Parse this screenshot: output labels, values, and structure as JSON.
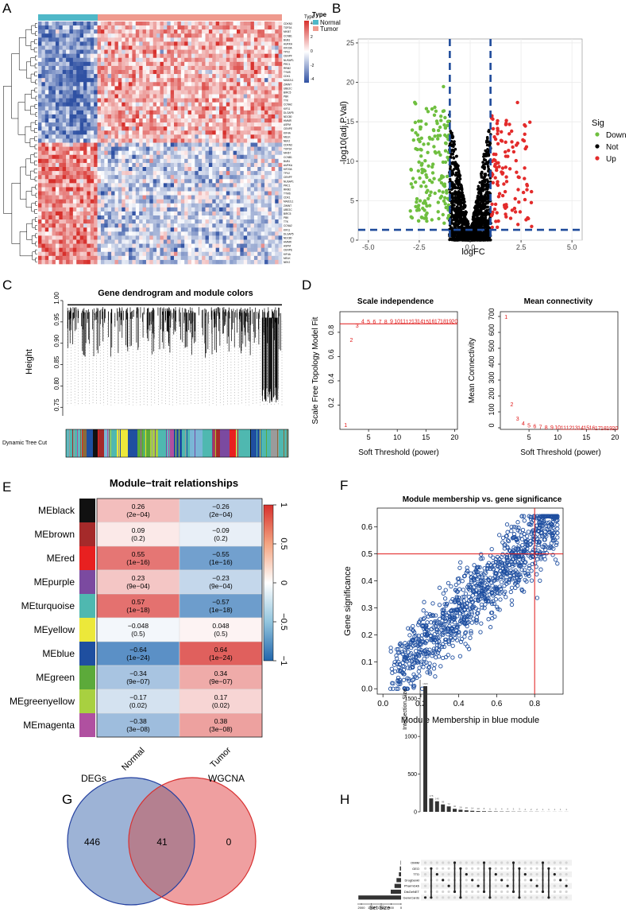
{
  "colors": {
    "normal": "#4fb8c8",
    "tumor": "#ef9a8e",
    "heat_low": "#2f51a3",
    "heat_mid": "#ffffff",
    "heat_high": "#d7302c",
    "volcano_down": "#6fbf3f",
    "volcano_not": "#000000",
    "volcano_up": "#e32b2b",
    "volcano_line": "#1f4b9b",
    "red_line": "#e01818",
    "mm_point": "#1f4fa0",
    "venn_deg": "#9db3d6",
    "venn_wgcna": "#ef9fa0",
    "venn_overlap": "#b48090",
    "venn_deg_border": "#2440a0",
    "venn_wgcna_border": "#d83030",
    "bar": "#333333"
  },
  "labels": {
    "a": "A",
    "b": "B",
    "c": "C",
    "d": "D",
    "e": "E",
    "f": "F",
    "g": "G",
    "h": "H"
  },
  "panel_a": {
    "legend_title": "Type",
    "legend_items": [
      "Normal",
      "Tumor"
    ],
    "scale_ticks": [
      "4",
      "2",
      "0",
      "-2",
      "-4"
    ],
    "genes": [
      "CDKN3",
      "TOP2A",
      "MKI67",
      "CCNB1",
      "BUB1",
      "AURKA",
      "KIF20A",
      "TPX2",
      "CENPF",
      "NUSAP1",
      "PRC1",
      "RRM2",
      "TYMS",
      "CDK1",
      "MAD2L1",
      "ZWINT",
      "UBE2C",
      "BIRC5",
      "PBK",
      "TTK",
      "CCNA2",
      "KIF11",
      "DLGAP5",
      "NDC80",
      "HMMR",
      "ASPM",
      "CENPE",
      "KIF4A",
      "MELK",
      "NEK2"
    ]
  },
  "volcano": {
    "chart_data": {
      "type": "scatter",
      "title": "",
      "xlabel": "logFC",
      "ylabel": "-log10(adj.P.Val)",
      "xlim": [
        -5.5,
        5.5
      ],
      "ylim": [
        0,
        25.5
      ],
      "x_ticks": [
        "-5.0",
        "-2.5",
        "0.0",
        "2.5",
        "5.0"
      ],
      "y_ticks": [
        "0",
        "5",
        "10",
        "15",
        "20",
        "25"
      ],
      "thresholds": {
        "logFC": [
          -1,
          1
        ],
        "neg_log10_p": 1.3
      },
      "legend_title": "Sig",
      "series": [
        {
          "name": "Down",
          "summary": "logFC approx -3.0 to -1.0, -log10 P approx 1.5 to 24.6"
        },
        {
          "name": "Not",
          "summary": "logFC approx -1.0 to 1.0, -log10 P approx 0 to 17"
        },
        {
          "name": "Up",
          "summary": "logFC approx 1.0 to 3.2, -log10 P approx 1.5 to 19"
        }
      ]
    }
  },
  "panel_c": {
    "title": "Gene dendrogram and module colors",
    "ylabel": "Height",
    "y_ticks": [
      "1.00",
      "0.95",
      "0.90",
      "0.85",
      "0.80",
      "0.75"
    ],
    "tree_cut_label": "Dynamic Tree Cut"
  },
  "scale_independence": {
    "chart_data": {
      "type": "scatter",
      "title": "Scale independence",
      "xlabel": "Soft Threshold (power)",
      "ylabel": "Scale Free Topology Model Fit",
      "x_ticks": [
        "5",
        "10",
        "15",
        "20"
      ],
      "y_ticks": [
        "0.2",
        "0.4",
        "0.6",
        "0.8"
      ],
      "xlim": [
        0,
        20.5
      ],
      "ylim": [
        0,
        0.97
      ],
      "threshold_line": 0.87,
      "x": [
        1,
        2,
        3,
        4,
        5,
        6,
        7,
        8,
        9,
        10,
        11,
        12,
        13,
        14,
        15,
        16,
        17,
        18,
        19,
        20
      ],
      "values": [
        0.04,
        0.74,
        0.86,
        0.895,
        0.89,
        0.89,
        0.89,
        0.89,
        0.895,
        0.895,
        0.895,
        0.89,
        0.895,
        0.895,
        0.89,
        0.895,
        0.895,
        0.895,
        0.895,
        0.895
      ]
    }
  },
  "mean_connectivity": {
    "chart_data": {
      "type": "scatter",
      "title": "Mean connectivity",
      "xlabel": "Soft Threshold (power)",
      "ylabel": "Mean Connectivity",
      "x_ticks": [
        "5",
        "10",
        "15",
        "20"
      ],
      "y_ticks": [
        "0",
        "100",
        "200",
        "300",
        "400",
        "500",
        "600",
        "700"
      ],
      "xlim": [
        0,
        20.5
      ],
      "ylim": [
        -10,
        730
      ],
      "x": [
        1,
        2,
        3,
        4,
        5,
        6,
        7,
        8,
        9,
        10,
        11,
        12,
        13,
        14,
        15,
        16,
        17,
        18,
        19,
        20
      ],
      "values": [
        700,
        150,
        60,
        30,
        18,
        12,
        8,
        6,
        5,
        4,
        3,
        3,
        2,
        2,
        2,
        2,
        1,
        1,
        1,
        1
      ]
    }
  },
  "module_trait": {
    "chart_data": {
      "type": "heatmap",
      "title": "Module−trait relationships",
      "columns": [
        "Normal",
        "Tumor"
      ],
      "rows": [
        "MEblack",
        "MEbrown",
        "MEred",
        "MEpurple",
        "MEturquoise",
        "MEyellow",
        "MEblue",
        "MEgreen",
        "MEgreenyellow",
        "MEmagenta"
      ],
      "row_colors": [
        "#111111",
        "#a52a2a",
        "#e82020",
        "#7b4aa0",
        "#4fb8b0",
        "#ece83a",
        "#1f4fa0",
        "#5caa3a",
        "#a8d040",
        "#b050a0"
      ],
      "values": [
        [
          0.26,
          -0.26
        ],
        [
          0.09,
          -0.09
        ],
        [
          0.55,
          -0.55
        ],
        [
          0.23,
          -0.23
        ],
        [
          0.57,
          -0.57
        ],
        [
          -0.048,
          0.048
        ],
        [
          -0.64,
          0.64
        ],
        [
          -0.34,
          0.34
        ],
        [
          -0.17,
          0.17
        ],
        [
          -0.38,
          0.38
        ]
      ],
      "value_labels": [
        [
          "0.26",
          "−0.26"
        ],
        [
          "0.09",
          "−0.09"
        ],
        [
          "0.55",
          "−0.55"
        ],
        [
          "0.23",
          "−0.23"
        ],
        [
          "0.57",
          "−0.57"
        ],
        [
          "−0.048",
          "0.048"
        ],
        [
          "−0.64",
          "0.64"
        ],
        [
          "−0.34",
          "0.34"
        ],
        [
          "−0.17",
          "0.17"
        ],
        [
          "−0.38",
          "0.38"
        ]
      ],
      "p_labels": [
        [
          "(2e−04)",
          "(2e−04)"
        ],
        [
          "(0.2)",
          "(0.2)"
        ],
        [
          "(1e−16)",
          "(1e−16)"
        ],
        [
          "(9e−04)",
          "(9e−04)"
        ],
        [
          "(1e−18)",
          "(1e−18)"
        ],
        [
          "(0.5)",
          "(0.5)"
        ],
        [
          "(1e−24)",
          "(1e−24)"
        ],
        [
          "(9e−07)",
          "(9e−07)"
        ],
        [
          "(0.02)",
          "(0.02)"
        ],
        [
          "(3e−08)",
          "(3e−08)"
        ]
      ],
      "scale_ticks": [
        "1",
        "0.5",
        "0",
        "−0.5",
        "−1"
      ],
      "zlim": [
        -1,
        1
      ]
    }
  },
  "mm_gs": {
    "chart_data": {
      "type": "scatter",
      "title": "Module membership vs. gene significance",
      "xlabel": "Module Membership in blue module",
      "ylabel": "Gene significance",
      "x_ticks": [
        "0.0",
        "0.2",
        "0.4",
        "0.6",
        "0.8"
      ],
      "y_ticks": [
        "0.0",
        "0.1",
        "0.2",
        "0.3",
        "0.4",
        "0.5",
        "0.6"
      ],
      "xlim": [
        -0.03,
        0.95
      ],
      "ylim": [
        -0.02,
        0.67
      ],
      "cutoffs": {
        "x": 0.8,
        "y": 0.5
      },
      "summary": "about 1500 genes, positive linear trend from (0.0, 0.05) to (0.9, 0.62)"
    }
  },
  "venn": {
    "left_label": "DEGs",
    "right_label": "WGCNA",
    "left_only": "446",
    "overlap": "41",
    "right_only": "0"
  },
  "upset": {
    "chart_data": {
      "type": "bar",
      "ylabel": "Intersection Size",
      "y_ticks": [
        "0",
        "500",
        "1000",
        "1500"
      ],
      "ylim": [
        0,
        1750
      ],
      "values": [
        1666,
        178,
        140,
        98,
        72,
        40,
        28,
        20,
        14,
        10,
        8,
        6,
        5,
        4,
        4,
        3,
        3,
        2,
        2,
        2,
        1,
        1,
        1,
        1,
        1
      ],
      "value_labels": [
        "1666",
        "178",
        "140",
        "98",
        "72",
        "40",
        "28",
        "20",
        "14",
        "10",
        "8",
        "6",
        "5",
        "4",
        "4",
        "3",
        "3",
        "2",
        "2",
        "2",
        "1",
        "1",
        "1",
        "1",
        "1"
      ],
      "set_names": [
        "OMIM",
        "GEO",
        "TTD",
        "DrugbankI",
        "PharmGkb",
        "DisGeNET",
        "GeneCards"
      ],
      "set_sizes": [
        20,
        60,
        110,
        230,
        330,
        520,
        2150
      ],
      "set_size_label": "Set Size",
      "set_size_ticks": [
        "2000",
        "1500",
        "1000",
        "500",
        "0"
      ],
      "set_size_xlim": [
        0,
        2200
      ]
    }
  }
}
